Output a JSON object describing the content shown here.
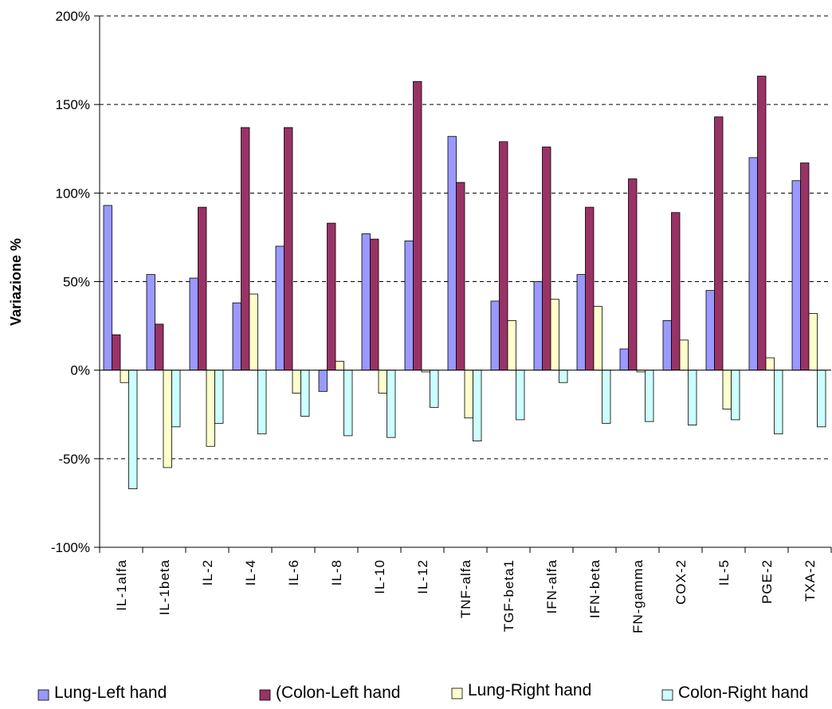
{
  "chart_data": {
    "type": "bar",
    "title": "",
    "xlabel": "",
    "ylabel": "Variazione %",
    "ylim": [
      -100,
      200
    ],
    "yticks": [
      -100,
      -50,
      0,
      50,
      100,
      150,
      200
    ],
    "ytick_labels": [
      "-100%",
      "-50%",
      "0%",
      "50%",
      "100%",
      "150%",
      "200%"
    ],
    "grid": "horizontal dashed",
    "legend_position": "bottom",
    "categories": [
      "IL-1alfa",
      "IL-1beta",
      "IL-2",
      "IL-4",
      "IL-6",
      "IL-8",
      "IL-10",
      "IL-12",
      "TNF-alfa",
      "TGF-beta1",
      "IFN-alfa",
      "IFN-beta",
      "FN-gamma",
      "COX-2",
      "IL-5",
      "PGE-2",
      "TXA-2"
    ],
    "series": [
      {
        "name": "Lung-Left hand",
        "legend_label": "Lung-Left hand",
        "color": "#9999ff",
        "values": [
          93,
          54,
          52,
          38,
          70,
          -12,
          77,
          73,
          132,
          39,
          50,
          54,
          12,
          28,
          45,
          120,
          107
        ]
      },
      {
        "name": "Colon-Left hand",
        "legend_label": "(Colon-Left hand",
        "color": "#993366",
        "values": [
          20,
          26,
          92,
          137,
          137,
          83,
          74,
          163,
          106,
          129,
          126,
          92,
          108,
          89,
          143,
          166,
          117
        ]
      },
      {
        "name": "Lung-Right hand",
        "legend_label": "Lung-Right hand",
        "color": "#ffffcc",
        "values": [
          -7,
          -55,
          -43,
          43,
          -13,
          5,
          -13,
          -1,
          -27,
          28,
          40,
          36,
          -1,
          17,
          -22,
          7,
          32
        ]
      },
      {
        "name": "Colon-Right hand",
        "legend_label": "Colon-Right hand",
        "color": "#ccffff",
        "values": [
          -67,
          -32,
          -30,
          -36,
          -26,
          -37,
          -38,
          -21,
          -40,
          -28,
          -7,
          -30,
          -29,
          -31,
          -28,
          -36,
          -32
        ]
      }
    ]
  }
}
